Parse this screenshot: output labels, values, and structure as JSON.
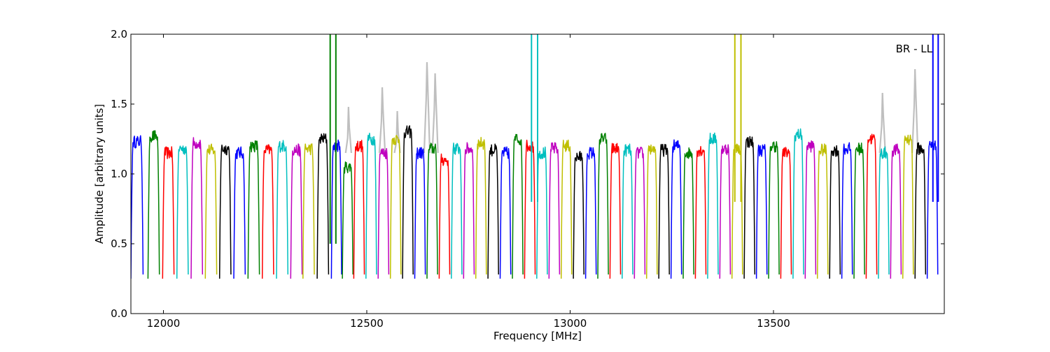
{
  "chart_data": {
    "type": "line",
    "title": "",
    "annotation": "BR - LL",
    "xlabel": "Frequency [MHz]",
    "ylabel": "Amplitude [arbitrary units]",
    "xlim": [
      11920,
      13920
    ],
    "ylim": [
      0.0,
      2.0
    ],
    "x_ticks": [
      12000,
      12500,
      13000,
      13500
    ],
    "x_tick_labels": [
      "12000",
      "12500",
      "13000",
      "13500"
    ],
    "y_ticks": [
      0.0,
      0.5,
      1.0,
      1.5,
      2.0
    ],
    "y_tick_labels": [
      "0.0",
      "0.5",
      "1.0",
      "1.5",
      "2.0"
    ],
    "grid": false,
    "color_cycle": [
      "#0000ff",
      "#008000",
      "#ff0000",
      "#00bfbf",
      "#bf00bf",
      "#bfbf00",
      "#000000"
    ],
    "background_trace_color": "#bfbfbf",
    "channels": [
      {
        "start": 11920,
        "width": 30,
        "plateau": 1.23,
        "color": "#0000ff"
      },
      {
        "start": 11962,
        "width": 28,
        "plateau": 1.27,
        "color": "#008000"
      },
      {
        "start": 11998,
        "width": 28,
        "plateau": 1.15,
        "color": "#ff0000"
      },
      {
        "start": 12033,
        "width": 28,
        "plateau": 1.18,
        "color": "#00bfbf"
      },
      {
        "start": 12068,
        "width": 28,
        "plateau": 1.22,
        "color": "#bf00bf"
      },
      {
        "start": 12103,
        "width": 28,
        "plateau": 1.17,
        "color": "#bfbf00"
      },
      {
        "start": 12138,
        "width": 28,
        "plateau": 1.18,
        "color": "#000000"
      },
      {
        "start": 12173,
        "width": 28,
        "plateau": 1.15,
        "color": "#0000ff"
      },
      {
        "start": 12208,
        "width": 28,
        "plateau": 1.2,
        "color": "#008000"
      },
      {
        "start": 12243,
        "width": 28,
        "plateau": 1.17,
        "color": "#ff0000"
      },
      {
        "start": 12278,
        "width": 28,
        "plateau": 1.2,
        "color": "#00bfbf"
      },
      {
        "start": 12313,
        "width": 28,
        "plateau": 1.17,
        "color": "#bf00bf"
      },
      {
        "start": 12343,
        "width": 28,
        "plateau": 1.18,
        "color": "#bfbf00"
      },
      {
        "start": 12378,
        "width": 28,
        "plateau": 1.25,
        "color": "#000000"
      },
      {
        "start": 12413,
        "width": 25,
        "plateau": 1.2,
        "color": "#0000ff"
      },
      {
        "start": 12440,
        "width": 26,
        "plateau": 1.05,
        "color": "#008000"
      },
      {
        "start": 12468,
        "width": 26,
        "plateau": 1.2,
        "color": "#ff0000"
      },
      {
        "start": 12498,
        "width": 26,
        "plateau": 1.25,
        "color": "#00bfbf"
      },
      {
        "start": 12528,
        "width": 26,
        "plateau": 1.15,
        "color": "#bf00bf"
      },
      {
        "start": 12558,
        "width": 26,
        "plateau": 1.25,
        "color": "#bfbf00"
      },
      {
        "start": 12588,
        "width": 26,
        "plateau": 1.3,
        "color": "#000000"
      },
      {
        "start": 12618,
        "width": 26,
        "plateau": 1.15,
        "color": "#0000ff"
      },
      {
        "start": 12648,
        "width": 26,
        "plateau": 1.18,
        "color": "#008000"
      },
      {
        "start": 12678,
        "width": 26,
        "plateau": 1.1,
        "color": "#ff0000"
      },
      {
        "start": 12708,
        "width": 26,
        "plateau": 1.18,
        "color": "#00bfbf"
      },
      {
        "start": 12738,
        "width": 26,
        "plateau": 1.18,
        "color": "#bf00bf"
      },
      {
        "start": 12768,
        "width": 26,
        "plateau": 1.22,
        "color": "#bfbf00"
      },
      {
        "start": 12798,
        "width": 26,
        "plateau": 1.17,
        "color": "#000000"
      },
      {
        "start": 12828,
        "width": 26,
        "plateau": 1.15,
        "color": "#0000ff"
      },
      {
        "start": 12858,
        "width": 26,
        "plateau": 1.25,
        "color": "#008000"
      },
      {
        "start": 12888,
        "width": 26,
        "plateau": 1.2,
        "color": "#ff0000"
      },
      {
        "start": 12918,
        "width": 26,
        "plateau": 1.15,
        "color": "#00bfbf"
      },
      {
        "start": 12948,
        "width": 26,
        "plateau": 1.18,
        "color": "#bf00bf"
      },
      {
        "start": 12978,
        "width": 26,
        "plateau": 1.2,
        "color": "#bfbf00"
      },
      {
        "start": 13008,
        "width": 26,
        "plateau": 1.12,
        "color": "#000000"
      },
      {
        "start": 13038,
        "width": 26,
        "plateau": 1.15,
        "color": "#0000ff"
      },
      {
        "start": 13068,
        "width": 26,
        "plateau": 1.25,
        "color": "#008000"
      },
      {
        "start": 13098,
        "width": 26,
        "plateau": 1.18,
        "color": "#ff0000"
      },
      {
        "start": 13128,
        "width": 26,
        "plateau": 1.17,
        "color": "#00bfbf"
      },
      {
        "start": 13158,
        "width": 26,
        "plateau": 1.15,
        "color": "#bf00bf"
      },
      {
        "start": 13188,
        "width": 26,
        "plateau": 1.18,
        "color": "#bfbf00"
      },
      {
        "start": 13218,
        "width": 26,
        "plateau": 1.17,
        "color": "#000000"
      },
      {
        "start": 13248,
        "width": 26,
        "plateau": 1.2,
        "color": "#0000ff"
      },
      {
        "start": 13278,
        "width": 26,
        "plateau": 1.15,
        "color": "#008000"
      },
      {
        "start": 13308,
        "width": 26,
        "plateau": 1.17,
        "color": "#ff0000"
      },
      {
        "start": 13338,
        "width": 26,
        "plateau": 1.25,
        "color": "#00bfbf"
      },
      {
        "start": 13368,
        "width": 26,
        "plateau": 1.18,
        "color": "#bf00bf"
      },
      {
        "start": 13398,
        "width": 26,
        "plateau": 1.18,
        "color": "#bfbf00"
      },
      {
        "start": 13428,
        "width": 26,
        "plateau": 1.23,
        "color": "#000000"
      },
      {
        "start": 13458,
        "width": 26,
        "plateau": 1.17,
        "color": "#0000ff"
      },
      {
        "start": 13488,
        "width": 26,
        "plateau": 1.2,
        "color": "#008000"
      },
      {
        "start": 13518,
        "width": 26,
        "plateau": 1.15,
        "color": "#ff0000"
      },
      {
        "start": 13548,
        "width": 26,
        "plateau": 1.28,
        "color": "#00bfbf"
      },
      {
        "start": 13578,
        "width": 26,
        "plateau": 1.2,
        "color": "#bf00bf"
      },
      {
        "start": 13608,
        "width": 26,
        "plateau": 1.17,
        "color": "#bfbf00"
      },
      {
        "start": 13638,
        "width": 26,
        "plateau": 1.17,
        "color": "#000000"
      },
      {
        "start": 13668,
        "width": 26,
        "plateau": 1.18,
        "color": "#0000ff"
      },
      {
        "start": 13698,
        "width": 26,
        "plateau": 1.18,
        "color": "#008000"
      },
      {
        "start": 13728,
        "width": 26,
        "plateau": 1.25,
        "color": "#ff0000"
      },
      {
        "start": 13758,
        "width": 26,
        "plateau": 1.15,
        "color": "#00bfbf"
      },
      {
        "start": 13788,
        "width": 26,
        "plateau": 1.17,
        "color": "#bf00bf"
      },
      {
        "start": 13818,
        "width": 26,
        "plateau": 1.25,
        "color": "#bfbf00"
      },
      {
        "start": 13848,
        "width": 26,
        "plateau": 1.18,
        "color": "#000000"
      },
      {
        "start": 13878,
        "width": 26,
        "plateau": 1.2,
        "color": "#0000ff"
      }
    ],
    "spikes": [
      {
        "x": 12410,
        "y_min": 0.5,
        "color": "#008000"
      },
      {
        "x": 12424,
        "y_min": 0.5,
        "color": "#008000"
      },
      {
        "x": 12905,
        "y_min": 0.8,
        "color": "#00bfbf"
      },
      {
        "x": 12920,
        "y_min": 0.8,
        "color": "#00bfbf"
      },
      {
        "x": 13405,
        "y_min": 0.8,
        "color": "#bfbf00"
      },
      {
        "x": 13420,
        "y_min": 0.8,
        "color": "#bfbf00"
      },
      {
        "x": 13892,
        "y_min": 0.8,
        "color": "#0000ff"
      },
      {
        "x": 13905,
        "y_min": 0.8,
        "color": "#0000ff"
      }
    ],
    "background_peaks": [
      {
        "x": 12455,
        "y": 1.48
      },
      {
        "x": 12538,
        "y": 1.62
      },
      {
        "x": 12575,
        "y": 1.45
      },
      {
        "x": 12648,
        "y": 1.8
      },
      {
        "x": 12668,
        "y": 1.72
      },
      {
        "x": 13768,
        "y": 1.58
      },
      {
        "x": 13848,
        "y": 1.75
      }
    ]
  }
}
